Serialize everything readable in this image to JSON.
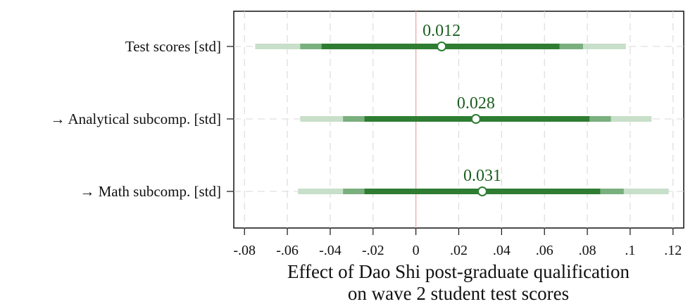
{
  "chart_data": {
    "type": "coefficient_plot",
    "title": "",
    "xlabel": "Effect of Dao Shi post-graduate qualification on wave 2 student test scores",
    "xlabel_lines": [
      "Effect of Dao Shi post-graduate qualification",
      "on wave 2 student test scores"
    ],
    "ylabel": "",
    "xlim": [
      -0.085,
      0.125
    ],
    "x_ticks": [
      -0.08,
      -0.06,
      -0.04,
      -0.02,
      0,
      0.02,
      0.04,
      0.06,
      0.08,
      0.1,
      0.12
    ],
    "x_tick_labels": [
      "-.08",
      "-.06",
      "-.04",
      "-.02",
      "0",
      ".02",
      ".04",
      ".06",
      ".08",
      ".1",
      ".12"
    ],
    "grid": true,
    "reference_line": 0,
    "colors": {
      "ci_inner": "#2e7d32",
      "ci_middle": "#7aaf7e",
      "ci_outer": "#c8dfc9",
      "marker_edge": "#2e7d32",
      "marker_fill": "#ffffff",
      "label": "#1b5e20",
      "reference": "#f4a3a3",
      "grid": "#d9d9d9"
    },
    "series": [
      {
        "label": "Test scores [std]",
        "estimate": 0.012,
        "estimate_label": "0.012",
        "ci_inner": [
          -0.044,
          0.067
        ],
        "ci_middle": [
          -0.054,
          0.078
        ],
        "ci_outer": [
          -0.075,
          0.098
        ]
      },
      {
        "label": "→ Analytical subcomp. [std]",
        "estimate": 0.028,
        "estimate_label": "0.028",
        "ci_inner": [
          -0.024,
          0.081
        ],
        "ci_middle": [
          -0.034,
          0.091
        ],
        "ci_outer": [
          -0.054,
          0.11
        ]
      },
      {
        "label": "→ Math subcomp. [std]",
        "estimate": 0.031,
        "estimate_label": "0.031",
        "ci_inner": [
          -0.024,
          0.086
        ],
        "ci_middle": [
          -0.034,
          0.097
        ],
        "ci_outer": [
          -0.055,
          0.118
        ]
      }
    ]
  }
}
